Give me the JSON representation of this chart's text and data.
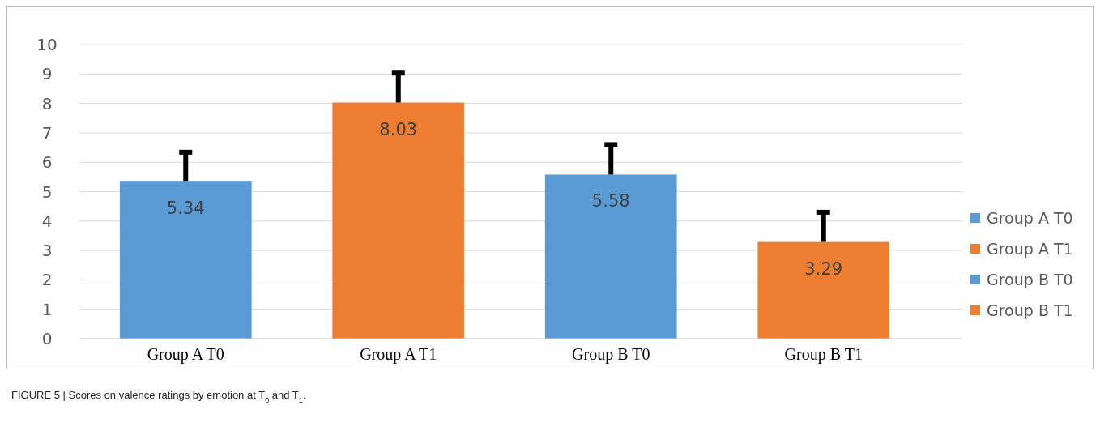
{
  "chart_data": {
    "type": "bar",
    "categories": [
      "Group A T0",
      "Group A T1",
      "Group B T0",
      "Group B T1"
    ],
    "series": [
      {
        "name": "Group A T0",
        "color": "#5b9bd5",
        "values": [
          5.34,
          null,
          null,
          null
        ],
        "errors": [
          [
            5.34,
            6.34
          ],
          null,
          null,
          null
        ]
      },
      {
        "name": "Group A T1",
        "color": "#ed7d31",
        "values": [
          null,
          8.03,
          null,
          null
        ],
        "errors": [
          null,
          [
            8.03,
            9.03
          ],
          null,
          null
        ]
      },
      {
        "name": "Group B T0",
        "color": "#5b9bd5",
        "values": [
          null,
          null,
          5.58,
          null
        ],
        "errors": [
          null,
          null,
          [
            5.58,
            6.6
          ],
          null
        ]
      },
      {
        "name": "Group B T1",
        "color": "#ed7d31",
        "values": [
          null,
          null,
          null,
          3.29
        ],
        "errors": [
          null,
          null,
          null,
          [
            3.29,
            4.3
          ]
        ]
      }
    ],
    "ylim": [
      0,
      10
    ],
    "yticks": [
      0,
      1,
      2,
      3,
      4,
      5,
      6,
      7,
      8,
      9,
      10
    ],
    "grid": "y",
    "legend": "right",
    "data_labels": true,
    "annotations": [
      "FIGURE 5 | Scores on valence ratings by emotion at T$_{0}$ and T$_{1}$."
    ]
  }
}
